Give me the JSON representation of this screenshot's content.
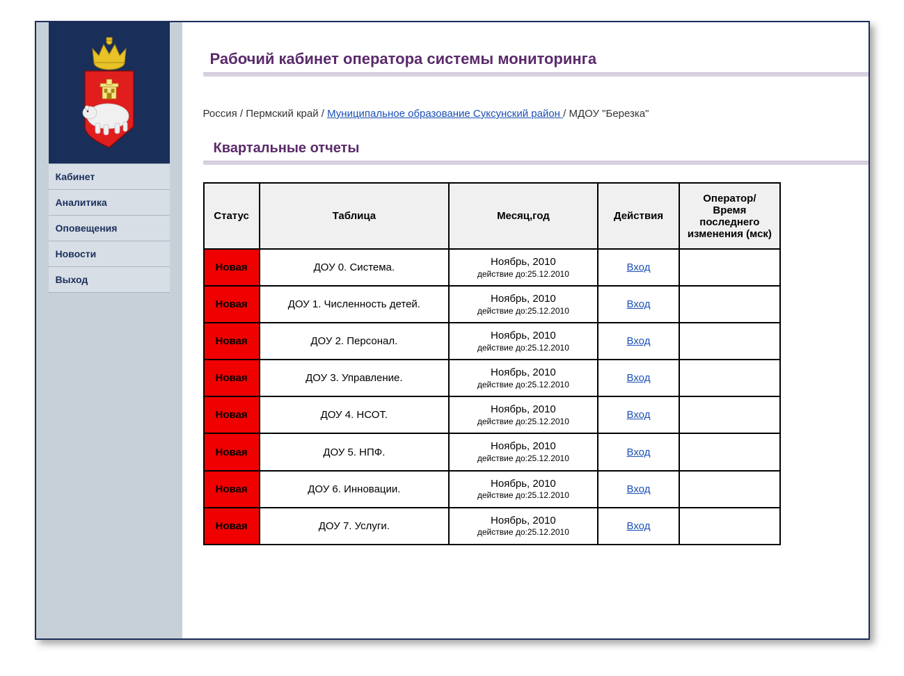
{
  "sidebar": {
    "menu": [
      {
        "label": "Кабинет"
      },
      {
        "label": "Аналитика"
      },
      {
        "label": "Оповещения"
      },
      {
        "label": "Новости"
      },
      {
        "label": "Выход"
      }
    ]
  },
  "header": {
    "title": "Рабочий кабинет оператора системы мониторинга"
  },
  "breadcrumb": {
    "parts": [
      {
        "text": "Россия",
        "link": false
      },
      {
        "text": "Пермский край",
        "link": false
      },
      {
        "text": "Муниципальное образование Суксунский район ",
        "link": true
      },
      {
        "text": "МДОУ \"Березка\"",
        "link": false
      }
    ],
    "sep": " / "
  },
  "section": {
    "title": "Квартальные отчеты"
  },
  "table": {
    "headers": {
      "status": "Статус",
      "name": "Таблица",
      "month": "Месяц,год",
      "action": "Действия",
      "operator": "Оператор/ Время последнего изменения (мск)"
    },
    "month_label": "Ноябрь, 2010",
    "deadline_prefix": "действие до:",
    "deadline_date": "25.12.2010",
    "action_label": "Вход",
    "status_label": "Новая",
    "status_bg": "#f00000",
    "rows": [
      {
        "name": "ДОУ 0. Система."
      },
      {
        "name": "ДОУ 1. Численность детей."
      },
      {
        "name": "ДОУ 2. Персонал."
      },
      {
        "name": "ДОУ 3. Управление."
      },
      {
        "name": "ДОУ 4. НСОТ."
      },
      {
        "name": "ДОУ 5. НПФ."
      },
      {
        "name": "ДОУ 6. Инновации."
      },
      {
        "name": "ДОУ 7. Услуги."
      }
    ]
  },
  "colors": {
    "title": "#5a2a6a",
    "link": "#1a4fb5",
    "frame_border": "#1a2e5a",
    "sidebar_bg": "#c7d0d9",
    "logo_bg": "#1a2e5a"
  }
}
